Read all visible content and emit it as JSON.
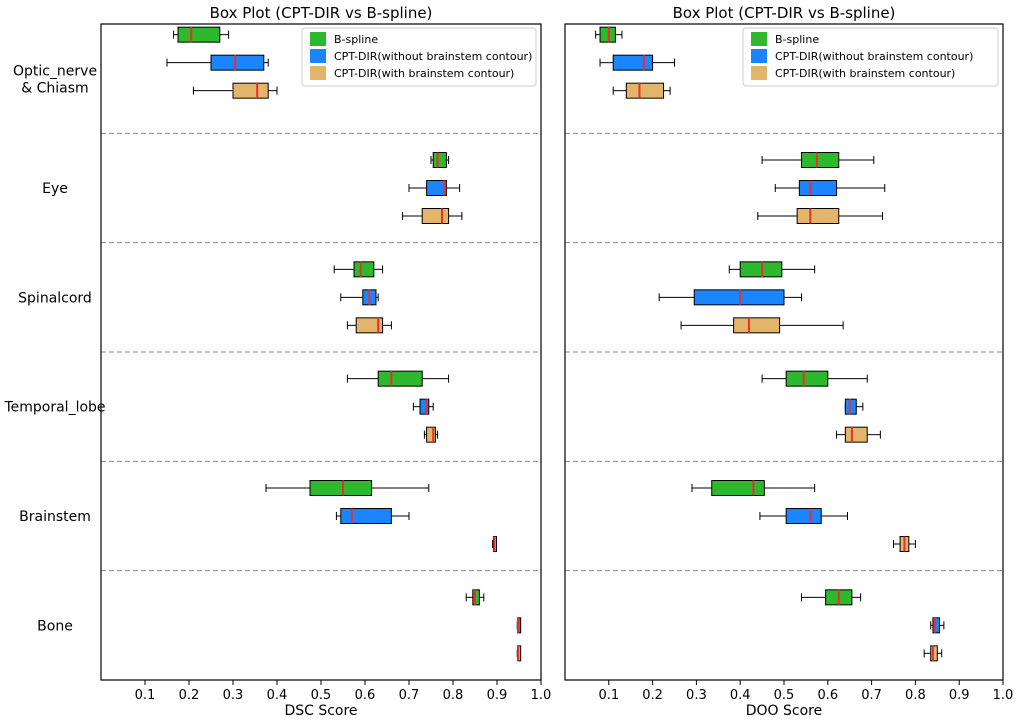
{
  "chart_data": {
    "type": "box",
    "categories": [
      "Optic_nerve\n& Chiasm",
      "Eye",
      "Spinalcord",
      "Temporal_lobe",
      "Brainstem",
      "Bone"
    ],
    "legend": [
      {
        "name": "B-spline",
        "color": "#2db82d"
      },
      {
        "name": "CPT-DIR(without brainstem contour)",
        "color": "#1a85ff"
      },
      {
        "name": "CPT-DIR(with brainstem contour)",
        "color": "#e3b56b"
      }
    ],
    "median_color": "#e8302a",
    "panels": [
      {
        "title": "Box Plot (CPT-DIR vs B-spline)",
        "xlabel": "DSC Score",
        "xlim": [
          0,
          1.0
        ],
        "ticks": [
          0.1,
          0.2,
          0.3,
          0.4,
          0.5,
          0.6,
          0.7,
          0.8,
          0.9,
          1.0
        ],
        "groups": [
          {
            "category": "Optic_nerve\n& Chiasm",
            "boxes": [
              {
                "min": 0.165,
                "q1": 0.175,
                "median": 0.205,
                "q3": 0.27,
                "max": 0.29
              },
              {
                "min": 0.15,
                "q1": 0.25,
                "median": 0.305,
                "q3": 0.37,
                "max": 0.38
              },
              {
                "min": 0.21,
                "q1": 0.3,
                "median": 0.355,
                "q3": 0.38,
                "max": 0.4
              }
            ]
          },
          {
            "category": "Eye",
            "boxes": [
              {
                "min": 0.75,
                "q1": 0.755,
                "median": 0.765,
                "q3": 0.785,
                "max": 0.79
              },
              {
                "min": 0.7,
                "q1": 0.74,
                "median": 0.78,
                "q3": 0.785,
                "max": 0.815
              },
              {
                "min": 0.685,
                "q1": 0.73,
                "median": 0.775,
                "q3": 0.79,
                "max": 0.82
              }
            ]
          },
          {
            "category": "Spinalcord",
            "boxes": [
              {
                "min": 0.53,
                "q1": 0.575,
                "median": 0.59,
                "q3": 0.62,
                "max": 0.64
              },
              {
                "min": 0.545,
                "q1": 0.595,
                "median": 0.61,
                "q3": 0.625,
                "max": 0.63
              },
              {
                "min": 0.56,
                "q1": 0.58,
                "median": 0.63,
                "q3": 0.64,
                "max": 0.66
              }
            ]
          },
          {
            "category": "Temporal_lobe",
            "boxes": [
              {
                "min": 0.56,
                "q1": 0.63,
                "median": 0.66,
                "q3": 0.73,
                "max": 0.79
              },
              {
                "min": 0.71,
                "q1": 0.725,
                "median": 0.74,
                "q3": 0.745,
                "max": 0.755
              },
              {
                "min": 0.735,
                "q1": 0.74,
                "median": 0.755,
                "q3": 0.76,
                "max": 0.765
              }
            ]
          },
          {
            "category": "Brainstem",
            "boxes": [
              {
                "min": 0.375,
                "q1": 0.475,
                "median": 0.55,
                "q3": 0.615,
                "max": 0.745
              },
              {
                "min": 0.535,
                "q1": 0.545,
                "median": 0.57,
                "q3": 0.66,
                "max": 0.7
              },
              {
                "min": 0.89,
                "q1": 0.892,
                "median": 0.894,
                "q3": 0.896,
                "max": 0.898
              }
            ]
          },
          {
            "category": "Bone",
            "boxes": [
              {
                "min": 0.83,
                "q1": 0.845,
                "median": 0.85,
                "q3": 0.86,
                "max": 0.87
              },
              {
                "min": 0.946,
                "q1": 0.947,
                "median": 0.948,
                "q3": 0.949,
                "max": 0.95
              },
              {
                "min": 0.946,
                "q1": 0.947,
                "median": 0.948,
                "q3": 0.949,
                "max": 0.95
              }
            ]
          }
        ]
      },
      {
        "title": "Box Plot (CPT-DIR vs B-spline)",
        "xlabel": "DOO Score",
        "xlim": [
          0,
          1.0
        ],
        "ticks": [
          0.1,
          0.2,
          0.3,
          0.4,
          0.5,
          0.6,
          0.7,
          0.8,
          0.9,
          1.0
        ],
        "groups": [
          {
            "category": "Optic_nerve\n& Chiasm",
            "boxes": [
              {
                "min": 0.07,
                "q1": 0.08,
                "median": 0.1,
                "q3": 0.115,
                "max": 0.13
              },
              {
                "min": 0.08,
                "q1": 0.11,
                "median": 0.18,
                "q3": 0.2,
                "max": 0.25
              },
              {
                "min": 0.11,
                "q1": 0.14,
                "median": 0.17,
                "q3": 0.225,
                "max": 0.24
              }
            ]
          },
          {
            "category": "Eye",
            "boxes": [
              {
                "min": 0.45,
                "q1": 0.54,
                "median": 0.575,
                "q3": 0.625,
                "max": 0.705
              },
              {
                "min": 0.48,
                "q1": 0.535,
                "median": 0.56,
                "q3": 0.62,
                "max": 0.73
              },
              {
                "min": 0.44,
                "q1": 0.53,
                "median": 0.56,
                "q3": 0.625,
                "max": 0.725
              }
            ]
          },
          {
            "category": "Spinalcord",
            "boxes": [
              {
                "min": 0.375,
                "q1": 0.4,
                "median": 0.45,
                "q3": 0.495,
                "max": 0.57
              },
              {
                "min": 0.215,
                "q1": 0.295,
                "median": 0.4,
                "q3": 0.5,
                "max": 0.54
              },
              {
                "min": 0.265,
                "q1": 0.385,
                "median": 0.42,
                "q3": 0.49,
                "max": 0.635
              }
            ]
          },
          {
            "category": "Temporal_lobe",
            "boxes": [
              {
                "min": 0.45,
                "q1": 0.505,
                "median": 0.545,
                "q3": 0.6,
                "max": 0.69
              },
              {
                "min": 0.64,
                "q1": 0.64,
                "median": 0.65,
                "q3": 0.665,
                "max": 0.68
              },
              {
                "min": 0.62,
                "q1": 0.64,
                "median": 0.655,
                "q3": 0.69,
                "max": 0.72
              }
            ]
          },
          {
            "category": "Brainstem",
            "boxes": [
              {
                "min": 0.29,
                "q1": 0.335,
                "median": 0.43,
                "q3": 0.455,
                "max": 0.57
              },
              {
                "min": 0.445,
                "q1": 0.505,
                "median": 0.56,
                "q3": 0.585,
                "max": 0.645
              },
              {
                "min": 0.75,
                "q1": 0.765,
                "median": 0.775,
                "q3": 0.785,
                "max": 0.8
              }
            ]
          },
          {
            "category": "Bone",
            "boxes": [
              {
                "min": 0.54,
                "q1": 0.595,
                "median": 0.625,
                "q3": 0.655,
                "max": 0.675
              },
              {
                "min": 0.835,
                "q1": 0.84,
                "median": 0.845,
                "q3": 0.855,
                "max": 0.865
              },
              {
                "min": 0.82,
                "q1": 0.835,
                "median": 0.84,
                "q3": 0.85,
                "max": 0.86
              }
            ]
          }
        ]
      }
    ]
  }
}
